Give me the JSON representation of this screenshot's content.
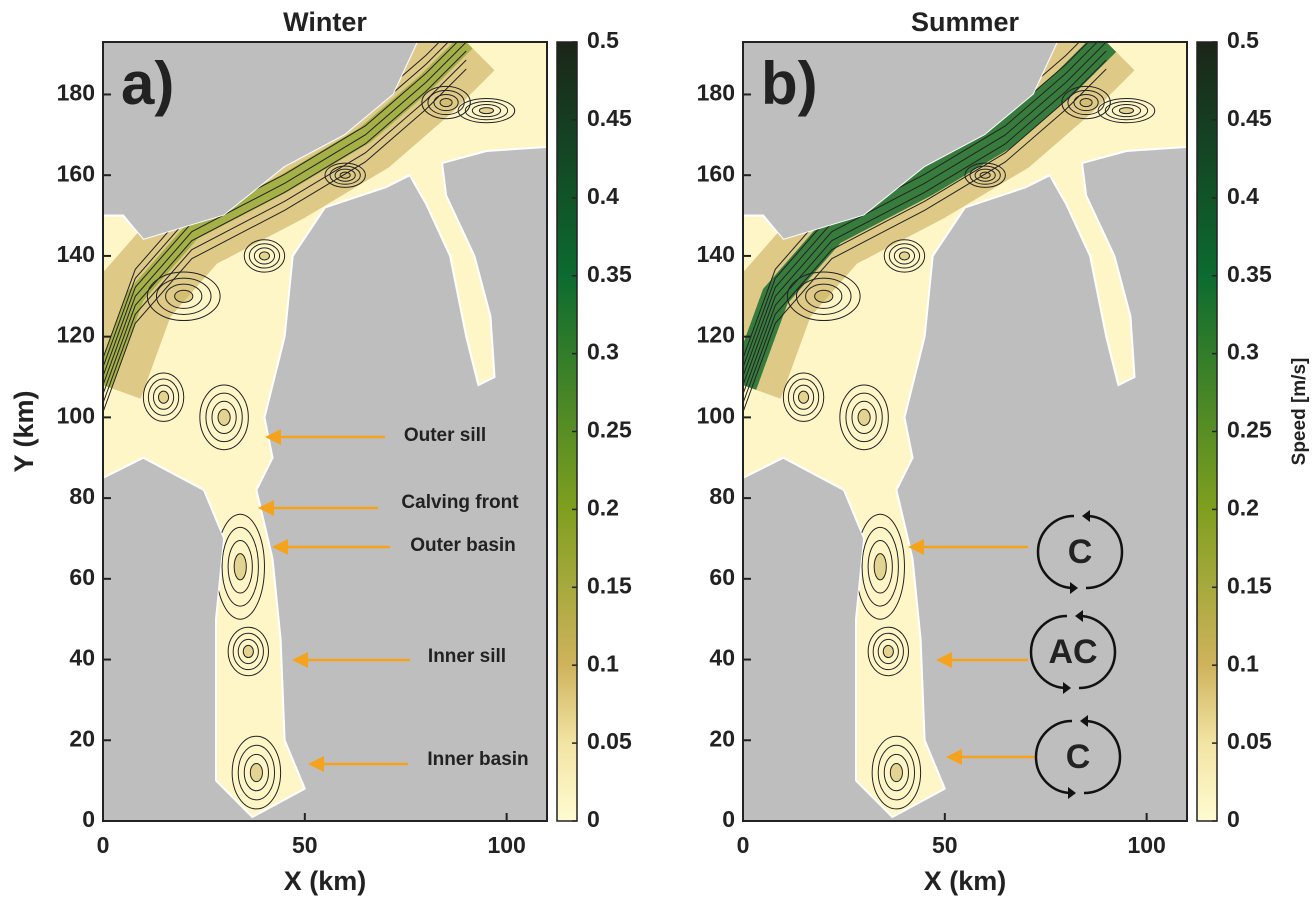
{
  "chart_data": [
    {
      "type": "streamplot",
      "title": "Winter",
      "panel_label": "a)",
      "x_label": "X (km)",
      "y_label": "Y (km)",
      "xlim": [
        0,
        110
      ],
      "ylim": [
        0,
        193
      ],
      "xticks": [
        0,
        50,
        100
      ],
      "yticks": [
        0,
        20,
        40,
        60,
        80,
        100,
        120,
        140,
        160,
        180
      ],
      "clim": [
        0,
        0.5
      ],
      "cticks": [
        0,
        0.05,
        0.1,
        0.15,
        0.2,
        0.25,
        0.3,
        0.35,
        0.4,
        0.45,
        0.5
      ],
      "annotations": [
        "Outer sill",
        "Calving front",
        "Outer basin",
        "Inner sill",
        "Inner basin"
      ]
    },
    {
      "type": "streamplot",
      "title": "Summer",
      "panel_label": "b)",
      "x_label": "X (km)",
      "colorbar_label": "Speed [m/s]",
      "xlim": [
        0,
        110
      ],
      "ylim": [
        0,
        193
      ],
      "xticks": [
        0,
        50,
        100
      ],
      "yticks": [
        0,
        20,
        40,
        60,
        80,
        100,
        120,
        140,
        160,
        180
      ],
      "clim": [
        0,
        0.5
      ],
      "cticks": [
        0,
        0.05,
        0.1,
        0.15,
        0.2,
        0.25,
        0.3,
        0.35,
        0.4,
        0.45,
        0.5
      ],
      "annotations": [
        "C",
        "AC",
        "C"
      ]
    }
  ]
}
